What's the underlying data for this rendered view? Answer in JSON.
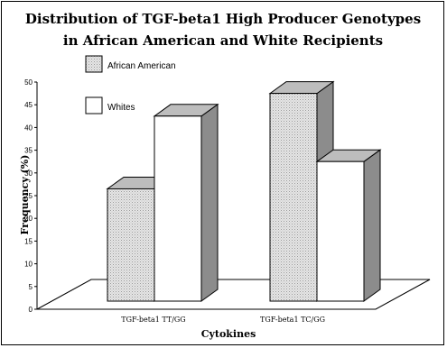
{
  "chart_data": {
    "type": "bar",
    "title": [
      "Distribution of TGF-beta1 High Producer Genotypes",
      "in African American and White Recipients"
    ],
    "xlabel": "Cytokines",
    "ylabel": "Frequency (%)",
    "categories": [
      "TGF-beta1 TT/GG",
      "TGF-beta1 TC/GG"
    ],
    "series": [
      {
        "name": "African American",
        "values": [
          26.5,
          47.5
        ],
        "color": "#d6d6d6",
        "pattern": "dotted"
      },
      {
        "name": "Whites",
        "values": [
          42.5,
          32.5
        ],
        "color": "#ffffff",
        "pattern": "solid"
      }
    ],
    "ylim": [
      0,
      50
    ],
    "yticks": [
      "0",
      "5",
      "10",
      "15",
      "20",
      "25",
      "30",
      "35",
      "40",
      "45",
      "50"
    ],
    "grid": false,
    "legend_position": "top-left",
    "style": "3d",
    "side_color": "#8c8c8c",
    "top_color": "#bdbdbd"
  }
}
